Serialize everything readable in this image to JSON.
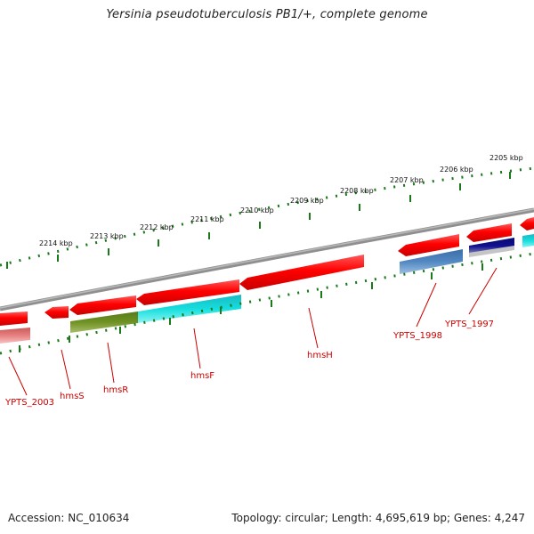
{
  "title": "Yersinia pseudotuberculosis PB1/+, complete genome",
  "footer": {
    "accession": "Accession: NC_010634",
    "summary": "Topology: circular; Length: 4,695,619 bp; Genes: 4,247"
  },
  "colors": {
    "backbone": "#8a8a8a",
    "tick": "#1a7a1a",
    "gene_forward": "#ff0000",
    "label": "#cc0000",
    "cds_cyan": "#11d3d3",
    "cds_olive": "#6b8e23",
    "cds_steelblue": "#4b7fb8",
    "cds_navy": "#0c0c80",
    "cds_pink": "#e88888"
  },
  "ruler": [
    {
      "label": "2205 kbp",
      "position_kbp": 2205
    },
    {
      "label": "2206 kbp",
      "position_kbp": 2206
    },
    {
      "label": "2207 kbp",
      "position_kbp": 2207
    },
    {
      "label": "2208 kbp",
      "position_kbp": 2208
    },
    {
      "label": "2209 kbp",
      "position_kbp": 2209
    },
    {
      "label": "2210 kbp",
      "position_kbp": 2210
    },
    {
      "label": "2211 kbp",
      "position_kbp": 2211
    },
    {
      "label": "2212 kbp",
      "position_kbp": 2212
    },
    {
      "label": "2213 kbp",
      "position_kbp": 2213
    },
    {
      "label": "2214 kbp",
      "position_kbp": 2214
    }
  ],
  "gene_labels": [
    {
      "text": "YPTS_1997"
    },
    {
      "text": "YPTS_1998"
    },
    {
      "text": "hmsH"
    },
    {
      "text": "hmsF"
    },
    {
      "text": "hmsR"
    },
    {
      "text": "hmsS"
    },
    {
      "text": "YPTS_2003"
    }
  ]
}
